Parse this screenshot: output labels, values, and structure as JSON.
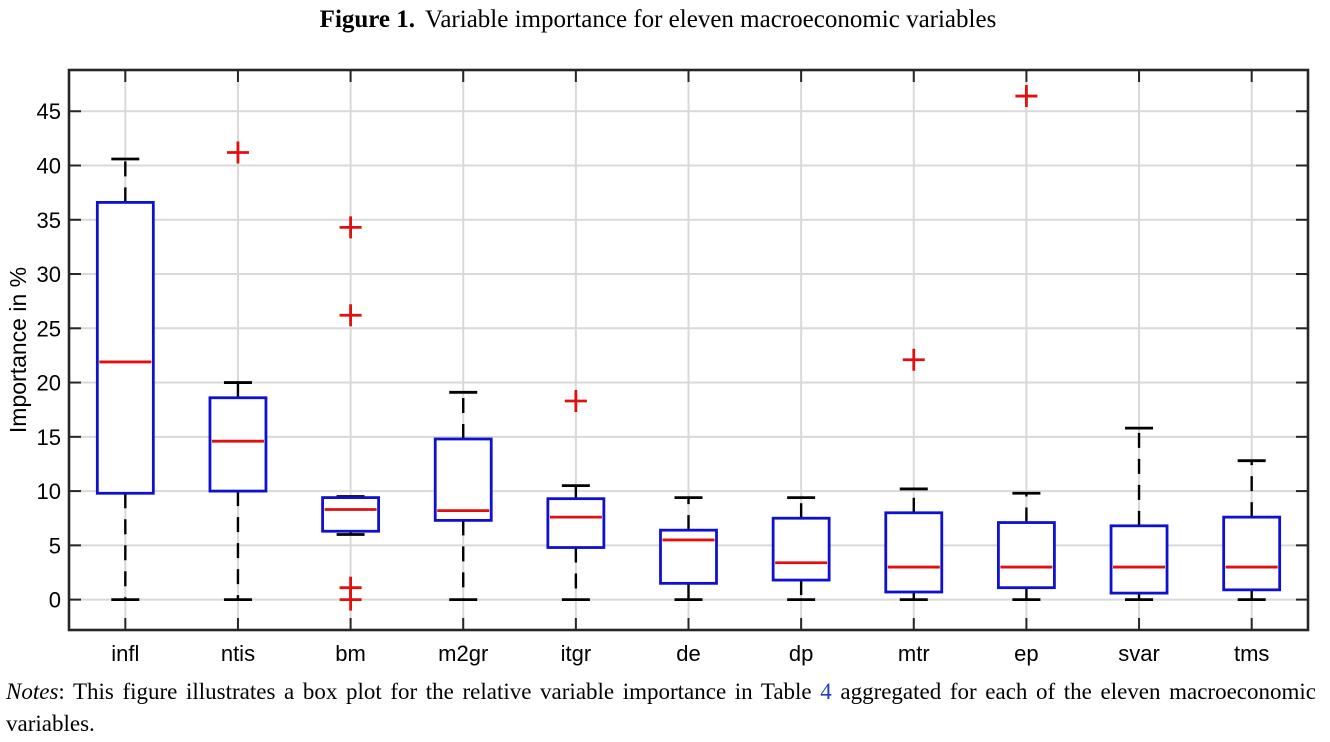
{
  "figure": {
    "label": "Figure 1.",
    "caption": "Variable importance for eleven macroeconomic variables"
  },
  "notes": {
    "label": "Notes",
    "text_before": ": This figure illustrates a box plot for the relative variable importance in Table ",
    "table_ref": "4",
    "text_after": " aggregated for each of the eleven macroeconomic variables."
  },
  "colors": {
    "box": "#1010d0",
    "median": "#e01010",
    "whisker": "#000000",
    "outlier": "#e01010",
    "grid": "#d9d9d9",
    "frame": "#262626"
  },
  "chart_data": {
    "type": "box",
    "xlabel": "",
    "ylabel": "Importance in %",
    "ylim": [
      -2.8,
      48.8
    ],
    "yticks": [
      0,
      5,
      10,
      15,
      20,
      25,
      30,
      35,
      40,
      45
    ],
    "grid": true,
    "categories": [
      "infl",
      "ntis",
      "bm",
      "m2gr",
      "itgr",
      "de",
      "dp",
      "mtr",
      "ep",
      "svar",
      "tms"
    ],
    "boxes": [
      {
        "name": "infl",
        "whisker_low": 0,
        "q1": 9.8,
        "median": 21.9,
        "q3": 36.6,
        "whisker_high": 40.6,
        "outliers": []
      },
      {
        "name": "ntis",
        "whisker_low": 0,
        "q1": 10.0,
        "median": 14.6,
        "q3": 18.6,
        "whisker_high": 20.0,
        "outliers": [
          41.2
        ]
      },
      {
        "name": "bm",
        "whisker_low": 6.0,
        "q1": 6.3,
        "median": 8.3,
        "q3": 9.4,
        "whisker_high": 9.5,
        "outliers": [
          34.3,
          26.2,
          1.1,
          0.0
        ]
      },
      {
        "name": "m2gr",
        "whisker_low": 0,
        "q1": 7.3,
        "median": 8.2,
        "q3": 14.8,
        "whisker_high": 19.1,
        "outliers": []
      },
      {
        "name": "itgr",
        "whisker_low": 0,
        "q1": 4.8,
        "median": 7.6,
        "q3": 9.3,
        "whisker_high": 10.5,
        "outliers": [
          18.3
        ]
      },
      {
        "name": "de",
        "whisker_low": 0,
        "q1": 1.5,
        "median": 5.5,
        "q3": 6.4,
        "whisker_high": 9.4,
        "outliers": []
      },
      {
        "name": "dp",
        "whisker_low": 0,
        "q1": 1.8,
        "median": 3.4,
        "q3": 7.5,
        "whisker_high": 9.4,
        "outliers": []
      },
      {
        "name": "mtr",
        "whisker_low": 0,
        "q1": 0.7,
        "median": 3.0,
        "q3": 8.0,
        "whisker_high": 10.2,
        "outliers": [
          22.1
        ]
      },
      {
        "name": "ep",
        "whisker_low": 0,
        "q1": 1.1,
        "median": 3.0,
        "q3": 7.1,
        "whisker_high": 9.8,
        "outliers": [
          46.4
        ]
      },
      {
        "name": "svar",
        "whisker_low": 0,
        "q1": 0.6,
        "median": 3.0,
        "q3": 6.8,
        "whisker_high": 15.8,
        "outliers": []
      },
      {
        "name": "tms",
        "whisker_low": 0,
        "q1": 0.9,
        "median": 3.0,
        "q3": 7.6,
        "whisker_high": 12.8,
        "outliers": []
      }
    ]
  }
}
